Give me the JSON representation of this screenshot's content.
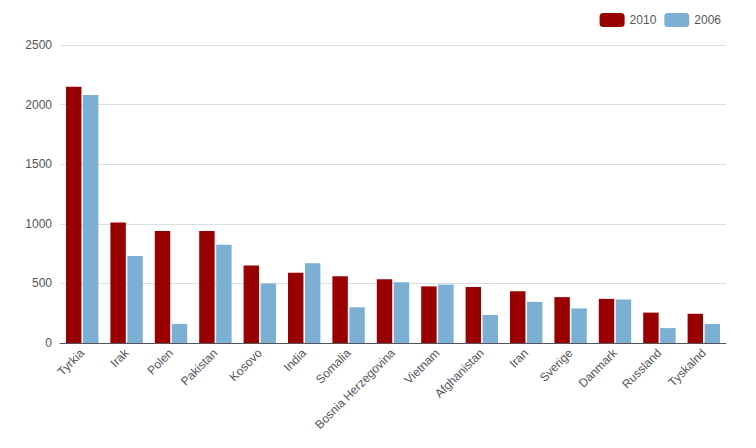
{
  "chart_data": {
    "type": "bar",
    "categories": [
      "Tyrkia",
      "Irak",
      "Polen",
      "Pakistan",
      "Kosovo",
      "India",
      "Somalia",
      "Bosnia Herzegovina",
      "Vietnam",
      "Afghanistan",
      "Iran",
      "Sverige",
      "Danmark",
      "Russland",
      "Tyskalnd"
    ],
    "series": [
      {
        "name": "2010",
        "color": "#990000",
        "values": [
          2150,
          1010,
          940,
          940,
          650,
          590,
          560,
          535,
          475,
          470,
          435,
          385,
          370,
          255,
          245
        ]
      },
      {
        "name": "2006",
        "color": "#7bafd4",
        "values": [
          2080,
          730,
          160,
          825,
          500,
          670,
          300,
          510,
          490,
          235,
          345,
          290,
          365,
          125,
          160
        ]
      }
    ],
    "ylim": [
      0,
      2500
    ],
    "yticks": [
      0,
      500,
      1000,
      1500,
      2000,
      2500
    ],
    "grid": true,
    "legend": "upper right"
  }
}
